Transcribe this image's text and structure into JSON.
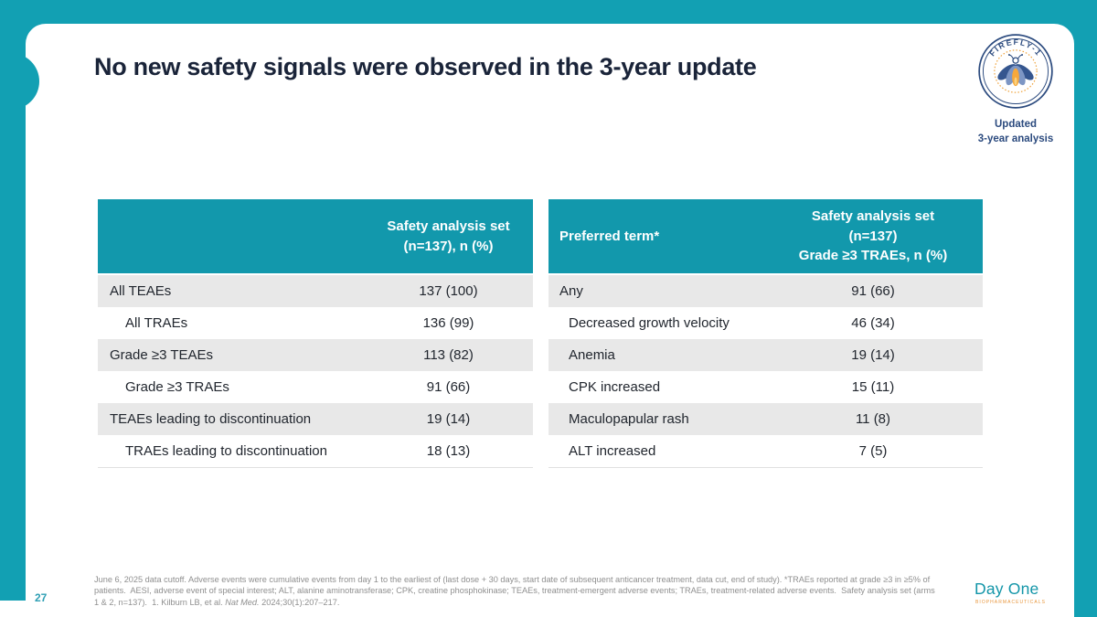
{
  "slide": {
    "title": "No new safety signals were observed in the 3-year update",
    "page_number": "27",
    "badge": {
      "arc_text": "FIREFLY-1",
      "caption_line1": "Updated",
      "caption_line2": "3-year analysis"
    },
    "tables": {
      "left": {
        "header_lines": [
          "Safety analysis set",
          "(n=137), n (%)"
        ],
        "rows": [
          {
            "label": "All TEAEs",
            "value": "137 (100)",
            "indent": false
          },
          {
            "label": "All TRAEs",
            "value": "136 (99)",
            "indent": true
          },
          {
            "label": "Grade ≥3 TEAEs",
            "value": "113 (82)",
            "indent": false
          },
          {
            "label": "Grade ≥3 TRAEs",
            "value": "91 (66)",
            "indent": true
          },
          {
            "label": "TEAEs leading to discontinuation",
            "value": "19 (14)",
            "indent": false
          },
          {
            "label": "TRAEs leading to discontinuation",
            "value": "18 (13)",
            "indent": true
          }
        ]
      },
      "right": {
        "header_col1": "Preferred term*",
        "header_lines": [
          "Safety analysis set",
          "(n=137)",
          "Grade ≥3 TRAEs, n (%)"
        ],
        "rows": [
          {
            "label": "Any",
            "value": "91 (66)",
            "indent": false
          },
          {
            "label": "Decreased growth velocity",
            "value": "46 (34)",
            "indent": true
          },
          {
            "label": "Anemia",
            "value": "19 (14)",
            "indent": true
          },
          {
            "label": "CPK increased",
            "value": "15 (11)",
            "indent": true
          },
          {
            "label": "Maculopapular rash",
            "value": "11 (8)",
            "indent": true
          },
          {
            "label": "ALT increased",
            "value": "7 (5)",
            "indent": true
          }
        ]
      }
    },
    "footnote": {
      "line1": "June 6, 2025 data cutoff. Adverse events were cumulative events from day 1 to the earliest of (last dose + 30 days, start date of subsequent anticancer treatment, data cut, end of study). *TRAEs reported at grade ≥3 in ≥5% of",
      "line2": "patients.  AESI, adverse event of special interest; ALT, alanine aminotransferase; CPK, creatine phosphokinase; TEAEs, treatment-emergent adverse events; TRAEs, treatment-related adverse events.  Safety analysis set (arms",
      "line3_pre": "1 & 2, n=137).  1. Kilburn LB, et al. ",
      "line3_italic": "Nat Med.",
      "line3_post": " 2024;30(1):207–217."
    },
    "logo": {
      "wordmark": "Day One",
      "sub": "BIOPHARMACEUTICALS"
    },
    "colors": {
      "frame_teal": "#12A0B3",
      "table_header_teal": "#1298AC",
      "title_navy": "#1A2439",
      "row_gray": "#E8E8E8",
      "footnote_gray": "#8F8F8F",
      "badge_navy": "#2B4A7E",
      "badge_orange": "#EFA33C",
      "dayone_teal": "#1295A8",
      "dayone_orange": "#E8963C"
    }
  }
}
